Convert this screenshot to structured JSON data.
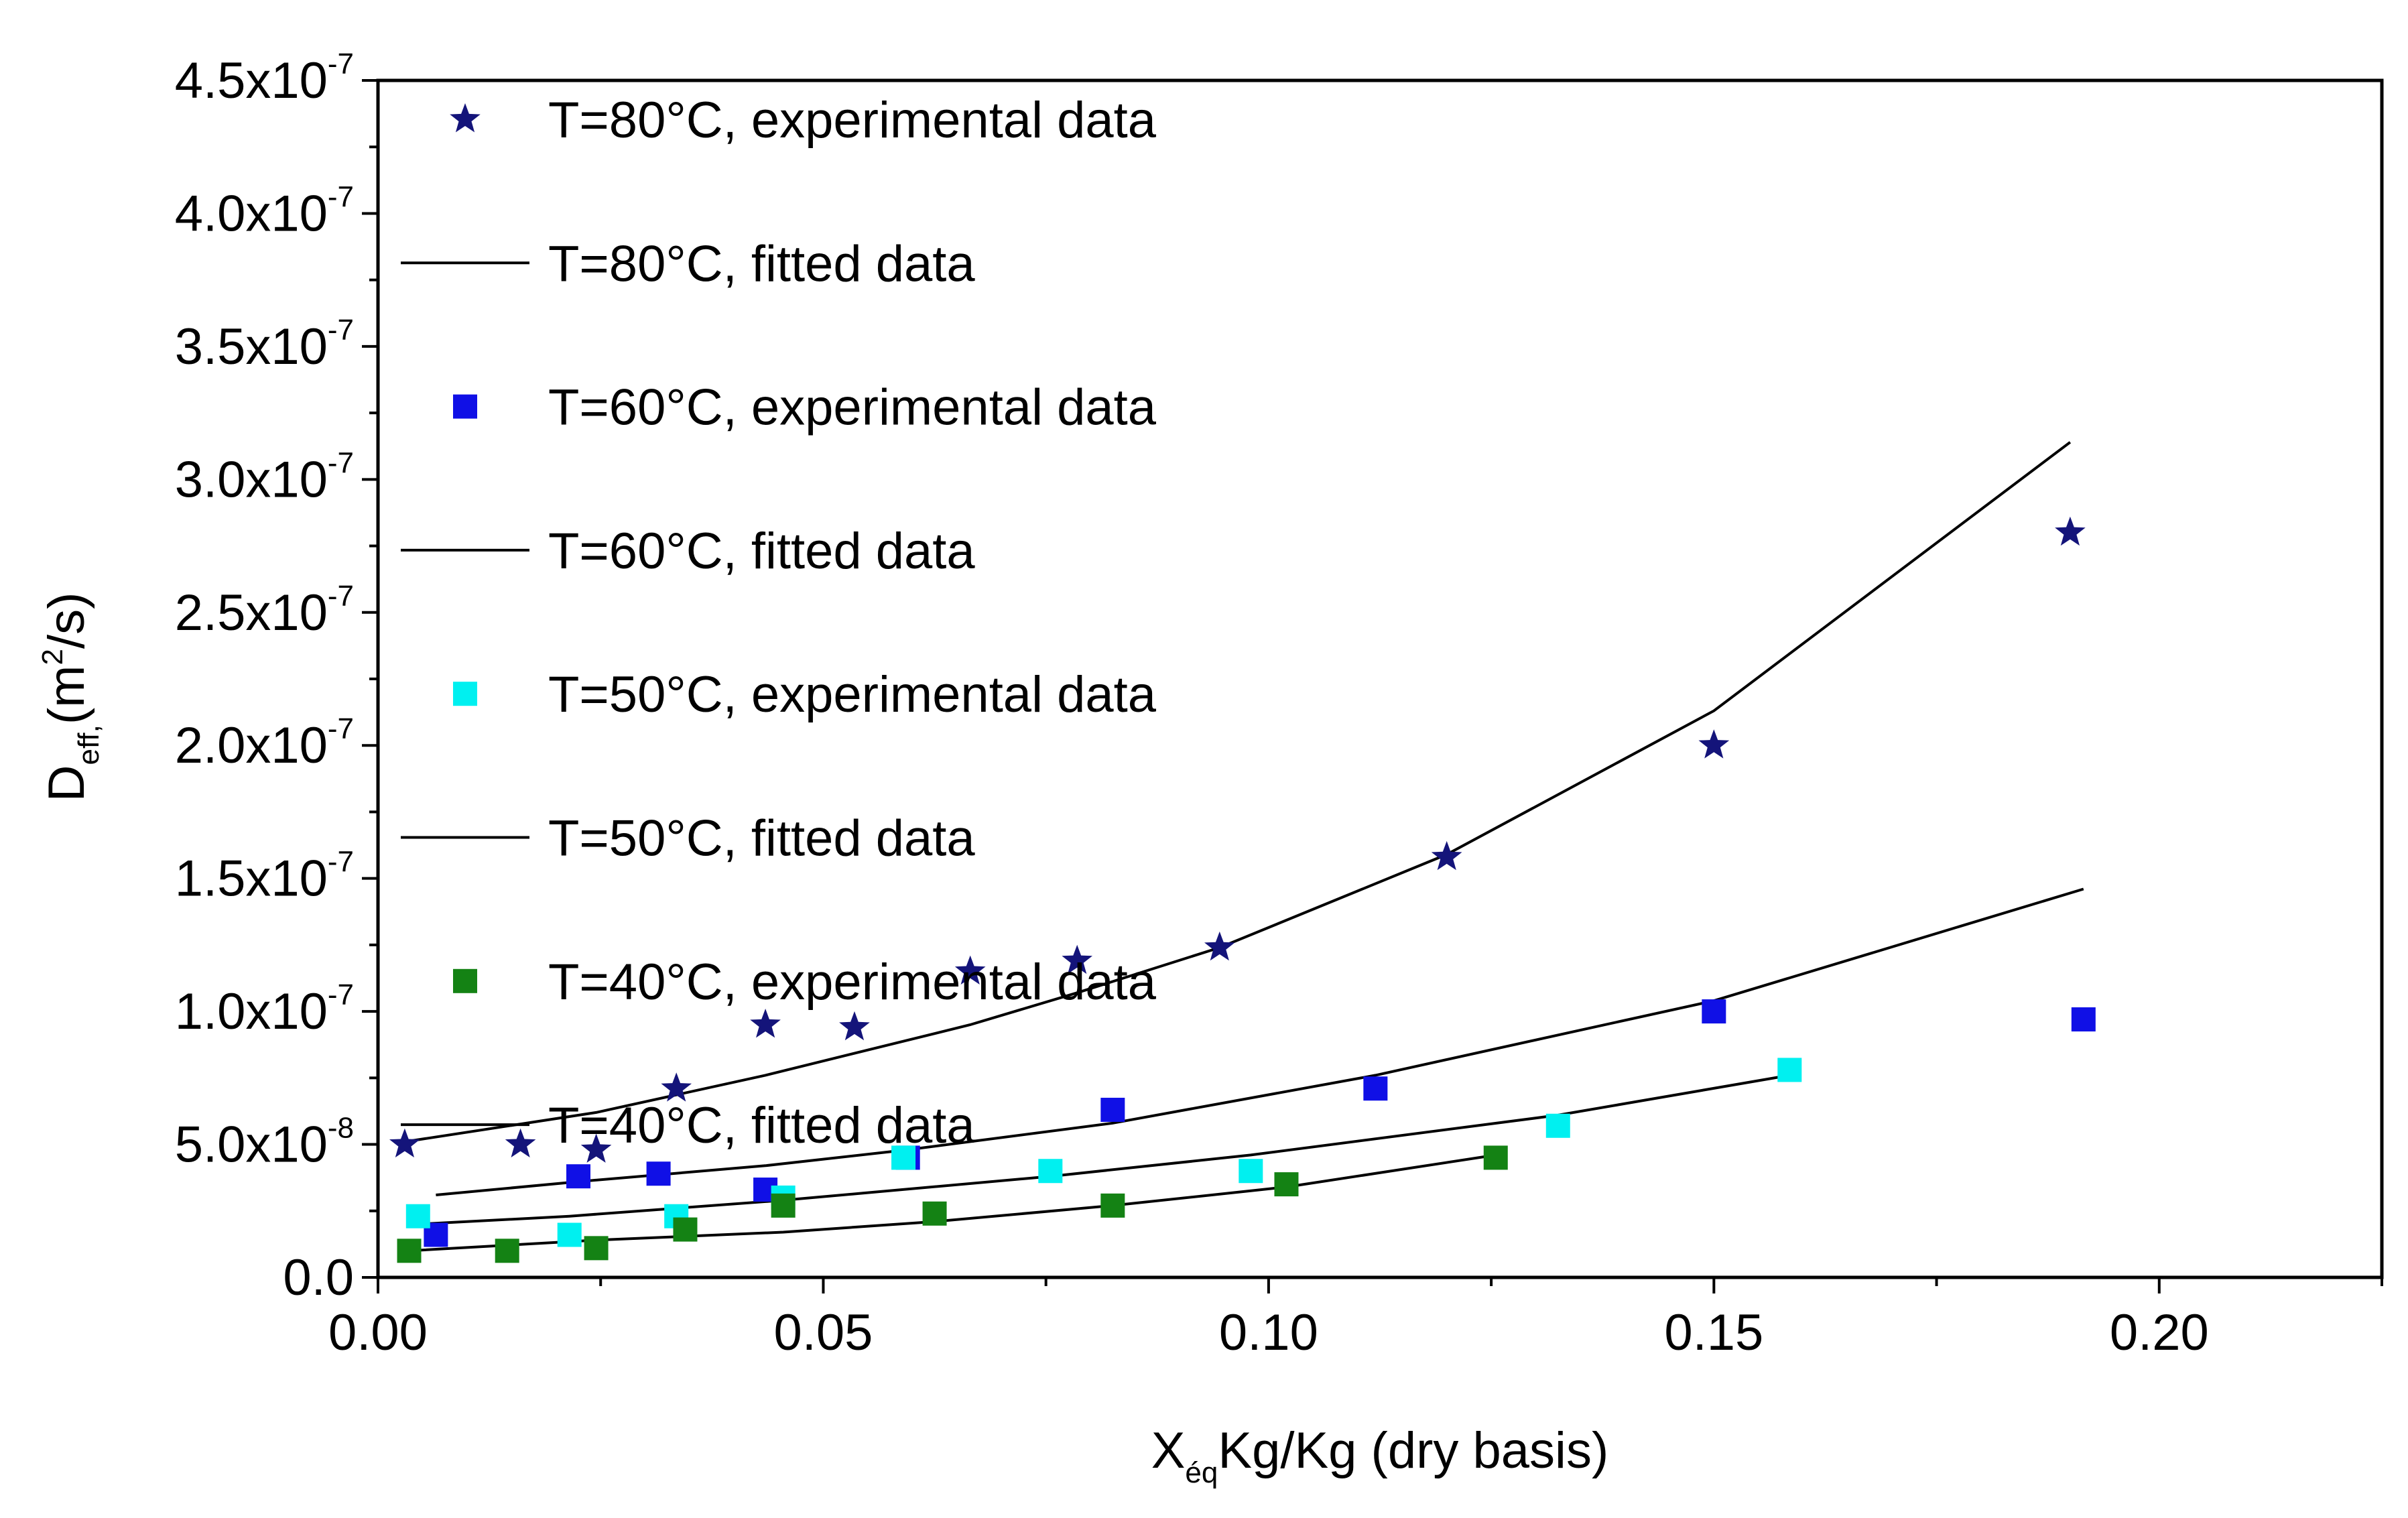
{
  "chart_data": {
    "type": "scatter",
    "title": "",
    "xlabel": {
      "main": "X",
      "sub": "éq",
      "rest": "Kg/Kg (dry basis)"
    },
    "ylabel": {
      "main": "D",
      "sub": "eff,",
      "rest_open": "(m",
      "sup": "2",
      "rest_close": "/s)"
    },
    "xlim": [
      0,
      0.225
    ],
    "ylim": [
      0,
      4.5e-07
    ],
    "x_ticks": [
      {
        "value": 0.0,
        "label": "0.00"
      },
      {
        "value": 0.05,
        "label": "0.05"
      },
      {
        "value": 0.1,
        "label": "0.10"
      },
      {
        "value": 0.15,
        "label": "0.15"
      },
      {
        "value": 0.2,
        "label": "0.20"
      }
    ],
    "y_ticks": [
      {
        "value": 0.0,
        "mant": "0.0",
        "exp": ""
      },
      {
        "value": 5e-08,
        "mant": "5.0x10",
        "exp": "-8"
      },
      {
        "value": 1e-07,
        "mant": "1.0x10",
        "exp": "-7"
      },
      {
        "value": 1.5e-07,
        "mant": "1.5x10",
        "exp": "-7"
      },
      {
        "value": 2e-07,
        "mant": "2.0x10",
        "exp": "-7"
      },
      {
        "value": 2.5e-07,
        "mant": "2.5x10",
        "exp": "-7"
      },
      {
        "value": 3e-07,
        "mant": "3.0x10",
        "exp": "-7"
      },
      {
        "value": 3.5e-07,
        "mant": "3.5x10",
        "exp": "-7"
      },
      {
        "value": 4e-07,
        "mant": "4.0x10",
        "exp": "-7"
      },
      {
        "value": 4.5e-07,
        "mant": "4.5x10",
        "exp": "-7"
      }
    ],
    "grid": false,
    "legend_position": "top-left",
    "series": [
      {
        "name": "T=80°C, experimental data",
        "kind": "scatter",
        "marker": "star",
        "color": "#14147a",
        "x": [
          0.003,
          0.016,
          0.0245,
          0.0335,
          0.0435,
          0.0535,
          0.0665,
          0.0785,
          0.0945,
          0.12,
          0.15,
          0.19
        ],
        "y": [
          5e-08,
          5e-08,
          4.8e-08,
          7.1e-08,
          9.5e-08,
          9.4e-08,
          1.15e-07,
          1.19e-07,
          1.24e-07,
          1.58e-07,
          2e-07,
          2.8e-07
        ]
      },
      {
        "name": "T=80°C, fitted data",
        "kind": "line",
        "color": "#000000",
        "x": [
          0.003,
          0.0245,
          0.0435,
          0.0665,
          0.0785,
          0.0945,
          0.12,
          0.15,
          0.19
        ],
        "y": [
          5.1e-08,
          6.2e-08,
          7.6e-08,
          9.5e-08,
          1.07e-07,
          1.24e-07,
          1.59e-07,
          2.13e-07,
          3.14e-07
        ]
      },
      {
        "name": "T=60°C, experimental data",
        "kind": "scatter",
        "marker": "square",
        "color": "#1010e6",
        "x": [
          0.0065,
          0.0225,
          0.0315,
          0.0435,
          0.0595,
          0.0825,
          0.112,
          0.15,
          0.1915
        ],
        "y": [
          1.6e-08,
          3.8e-08,
          3.9e-08,
          3.3e-08,
          4.5e-08,
          6.3e-08,
          7.1e-08,
          1e-07,
          9.7e-08
        ]
      },
      {
        "name": "T=60°C, fitted data",
        "kind": "line",
        "color": "#000000",
        "x": [
          0.0065,
          0.0225,
          0.0435,
          0.0595,
          0.0825,
          0.112,
          0.15,
          0.1915
        ],
        "y": [
          3.1e-08,
          3.6e-08,
          4.2e-08,
          4.8e-08,
          5.8e-08,
          7.6e-08,
          1.04e-07,
          1.46e-07
        ]
      },
      {
        "name": "T=50°C, experimental data",
        "kind": "scatter",
        "marker": "square",
        "color": "#00f0f0",
        "x": [
          0.0045,
          0.0215,
          0.0335,
          0.0455,
          0.059,
          0.0755,
          0.098,
          0.1325,
          0.1585
        ],
        "y": [
          2.3e-08,
          1.6e-08,
          2.3e-08,
          3e-08,
          4.5e-08,
          4e-08,
          4e-08,
          5.7e-08,
          7.8e-08
        ]
      },
      {
        "name": "T=50°C, fitted data",
        "kind": "line",
        "color": "#000000",
        "x": [
          0.0045,
          0.0215,
          0.0455,
          0.0755,
          0.098,
          0.1325,
          0.1585
        ],
        "y": [
          2e-08,
          2.3e-08,
          2.9e-08,
          3.8e-08,
          4.6e-08,
          6.1e-08,
          7.6e-08
        ]
      },
      {
        "name": "T=40°C, experimental data",
        "kind": "scatter",
        "marker": "square",
        "color": "#148214",
        "x": [
          0.0035,
          0.0145,
          0.0245,
          0.0345,
          0.0455,
          0.0625,
          0.0825,
          0.102,
          0.1255
        ],
        "y": [
          1e-08,
          1e-08,
          1.1e-08,
          1.8e-08,
          2.7e-08,
          2.4e-08,
          2.7e-08,
          3.5e-08,
          4.5e-08
        ]
      },
      {
        "name": "T=40°C, fitted data",
        "kind": "line",
        "color": "#000000",
        "x": [
          0.0035,
          0.0245,
          0.0455,
          0.0625,
          0.0825,
          0.102,
          0.1255
        ],
        "y": [
          1e-08,
          1.4e-08,
          1.7e-08,
          2.1e-08,
          2.7e-08,
          3.4e-08,
          4.6e-08
        ]
      }
    ]
  }
}
